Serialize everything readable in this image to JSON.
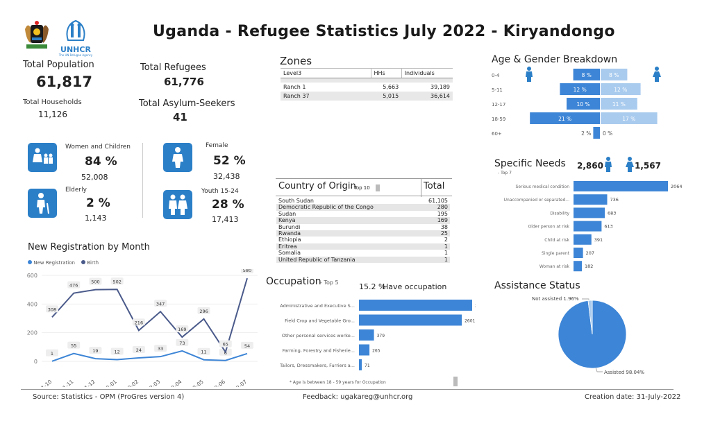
{
  "header": {
    "title": "Uganda - Refugee Statistics July 2022 - Kiryandongo",
    "unhcr_text": "UNHCR",
    "unhcr_sub": "The UN Refugee Agency"
  },
  "kpis": {
    "total_population_label": "Total Population",
    "total_population": "61,817",
    "total_households_label": "Total Households",
    "total_households": "11,126",
    "total_refugees_label": "Total Refugees",
    "total_refugees": "61,776",
    "asylum_label": "Total Asylum-Seekers",
    "asylum": "41"
  },
  "demographics": {
    "women_children_label": "Women and Children",
    "women_children_pct": "84 %",
    "women_children_count": "52,008",
    "elderly_label": "Elderly",
    "elderly_pct": "2 %",
    "elderly_count": "1,143",
    "female_label": "Female",
    "female_pct": "52 %",
    "female_count": "32,438",
    "youth_label": "Youth 15-24",
    "youth_pct": "28 %",
    "youth_count": "17,413"
  },
  "zones": {
    "title": "Zones",
    "headers": [
      "Level3",
      "HHs",
      "Individuals"
    ],
    "rows": [
      [
        "Ranch 1",
        "5,663",
        "39,189"
      ],
      [
        "Ranch 37",
        "5,015",
        "36,614"
      ]
    ]
  },
  "country_of_origin": {
    "title": "Country of Origin",
    "sub": "- Top 10",
    "total_label": "Total",
    "rows": [
      [
        "South Sudan",
        "61,105"
      ],
      [
        "Democratic Republic of the Congo",
        "280"
      ],
      [
        "Sudan",
        "195"
      ],
      [
        "Kenya",
        "169"
      ],
      [
        "Burundi",
        "38"
      ],
      [
        "Rwanda",
        "25"
      ],
      [
        "Ethiopia",
        "2"
      ],
      [
        "Eritrea",
        "1"
      ],
      [
        "Somalia",
        "1"
      ],
      [
        "United Republic of Tanzania",
        "1"
      ]
    ]
  },
  "occupation": {
    "title": "Occupation",
    "sub": "- Top 5",
    "have_occupation": "15.2 %",
    "have_occupation_label": "Have occupation",
    "footnote": "* Age is between 18 - 59 years for Occupation"
  },
  "age_gender": {
    "title": "Age & Gender Breakdown"
  },
  "specific_needs": {
    "title": "Specific Needs",
    "sub": "- Top 7",
    "male_count": "2,860",
    "female_count": "1,567"
  },
  "assistance": {
    "title": "Assistance Status"
  },
  "registration": {
    "title": "New Registration by Month",
    "legend_new": "New Registration",
    "legend_birth": "Birth"
  },
  "footer": {
    "source": "Source: Statistics - OPM (ProGres version 4)",
    "feedback": "Feedback: ugakareg@unhcr.org",
    "creation": "Creation date: 31-July-2022"
  },
  "colors": {
    "primary": "#2b7fc7",
    "light": "#a9cbee",
    "dark": "#4a5a8a",
    "bar": "#3d85d6"
  },
  "chart_data": [
    {
      "id": "registration",
      "type": "line",
      "title": "New Registration by Month",
      "categories": [
        "2021-10",
        "2021-11",
        "2021-12",
        "2022-01",
        "2022-02",
        "2022-03",
        "2022-04",
        "2022-05",
        "2022-06",
        "2022-07"
      ],
      "series": [
        {
          "name": "New Registration",
          "values": [
            1,
            55,
            19,
            12,
            24,
            33,
            73,
            11,
            6,
            54
          ]
        },
        {
          "name": "Birth",
          "values": [
            308,
            476,
            500,
            502,
            216,
            347,
            169,
            296,
            65,
            580
          ]
        }
      ],
      "ylim": [
        0,
        600
      ],
      "yticks": [
        0,
        200,
        400,
        600
      ]
    },
    {
      "id": "age_gender",
      "type": "bar",
      "title": "Age & Gender Breakdown",
      "categories": [
        "0-4",
        "5-11",
        "12-17",
        "18-59",
        "60+"
      ],
      "series": [
        {
          "name": "Male",
          "values": [
            8,
            12,
            10,
            21,
            2
          ],
          "labels": [
            "8 %",
            "12 %",
            "10 %",
            "21 %",
            "2 %"
          ]
        },
        {
          "name": "Female",
          "values": [
            8,
            12,
            11,
            17,
            0
          ],
          "labels": [
            "8 %",
            "12 %",
            "11 %",
            "17 %",
            "0 %"
          ]
        }
      ]
    },
    {
      "id": "specific_needs",
      "type": "bar",
      "title": "Specific Needs",
      "categories": [
        "Serious medical condition",
        "Unaccompanied or separated...",
        "Disability",
        "Older person at risk",
        "Child at risk",
        "Single parent",
        "Woman at risk"
      ],
      "values": [
        2064,
        736,
        683,
        613,
        391,
        207,
        182
      ]
    },
    {
      "id": "occupation",
      "type": "bar",
      "title": "Occupation",
      "categories": [
        "Administrative and Executive S...",
        "Field Crop and Vegetable Gro...",
        "Other personal services worke...",
        "Farming, Forestry and Fisherie...",
        "Tailors, Dressmakers, Furriers a..."
      ],
      "values": [
        2863,
        2601,
        379,
        265,
        71
      ]
    },
    {
      "id": "assistance",
      "type": "pie",
      "title": "Assistance Status",
      "slices": [
        {
          "name": "Assisted",
          "value": 98.04,
          "label": "Assisted 98.04%"
        },
        {
          "name": "Not assisted",
          "value": 1.96,
          "label": "Not assisted 1.96%"
        }
      ]
    }
  ]
}
